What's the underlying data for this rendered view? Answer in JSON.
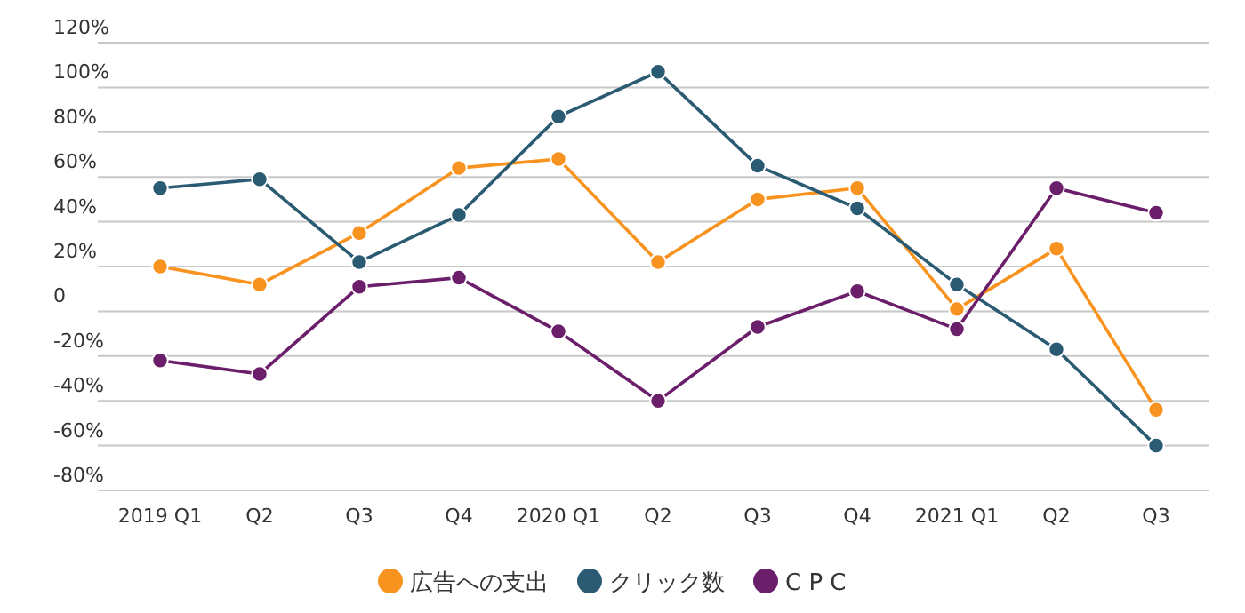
{
  "chart_data": {
    "type": "line",
    "categories": [
      "2019 Q1",
      "Q2",
      "Q3",
      "Q4",
      "2020 Q1",
      "Q2",
      "Q3",
      "Q4",
      "2021 Q1",
      "Q2",
      "Q3"
    ],
    "series": [
      {
        "name": "広告への支出",
        "color": "#f7931e",
        "values": [
          20,
          12,
          35,
          64,
          68,
          22,
          50,
          55,
          1,
          28,
          -44
        ]
      },
      {
        "name": "クリック数",
        "color": "#2b5a73",
        "values": [
          55,
          59,
          22,
          43,
          87,
          107,
          65,
          46,
          12,
          -17,
          -60
        ]
      },
      {
        "name": "C P C",
        "color": "#6b1f6b",
        "values": [
          -22,
          -28,
          11,
          15,
          -9,
          -40,
          -7,
          9,
          -8,
          55,
          44
        ]
      }
    ],
    "ylim": [
      -80,
      120
    ],
    "yticks": [
      {
        "value": -80,
        "label": "-80%"
      },
      {
        "value": -60,
        "label": "-60%"
      },
      {
        "value": -40,
        "label": "-40%"
      },
      {
        "value": -20,
        "label": "-20%"
      },
      {
        "value": 0,
        "label": "0"
      },
      {
        "value": 20,
        "label": "20%"
      },
      {
        "value": 40,
        "label": "40%"
      },
      {
        "value": 60,
        "label": "60%"
      },
      {
        "value": 80,
        "label": "80%"
      },
      {
        "value": 100,
        "label": "100%"
      },
      {
        "value": 120,
        "label": "120%"
      }
    ],
    "grid": "y",
    "legend": "bottom",
    "marker": "circle",
    "line_style": "solid"
  }
}
